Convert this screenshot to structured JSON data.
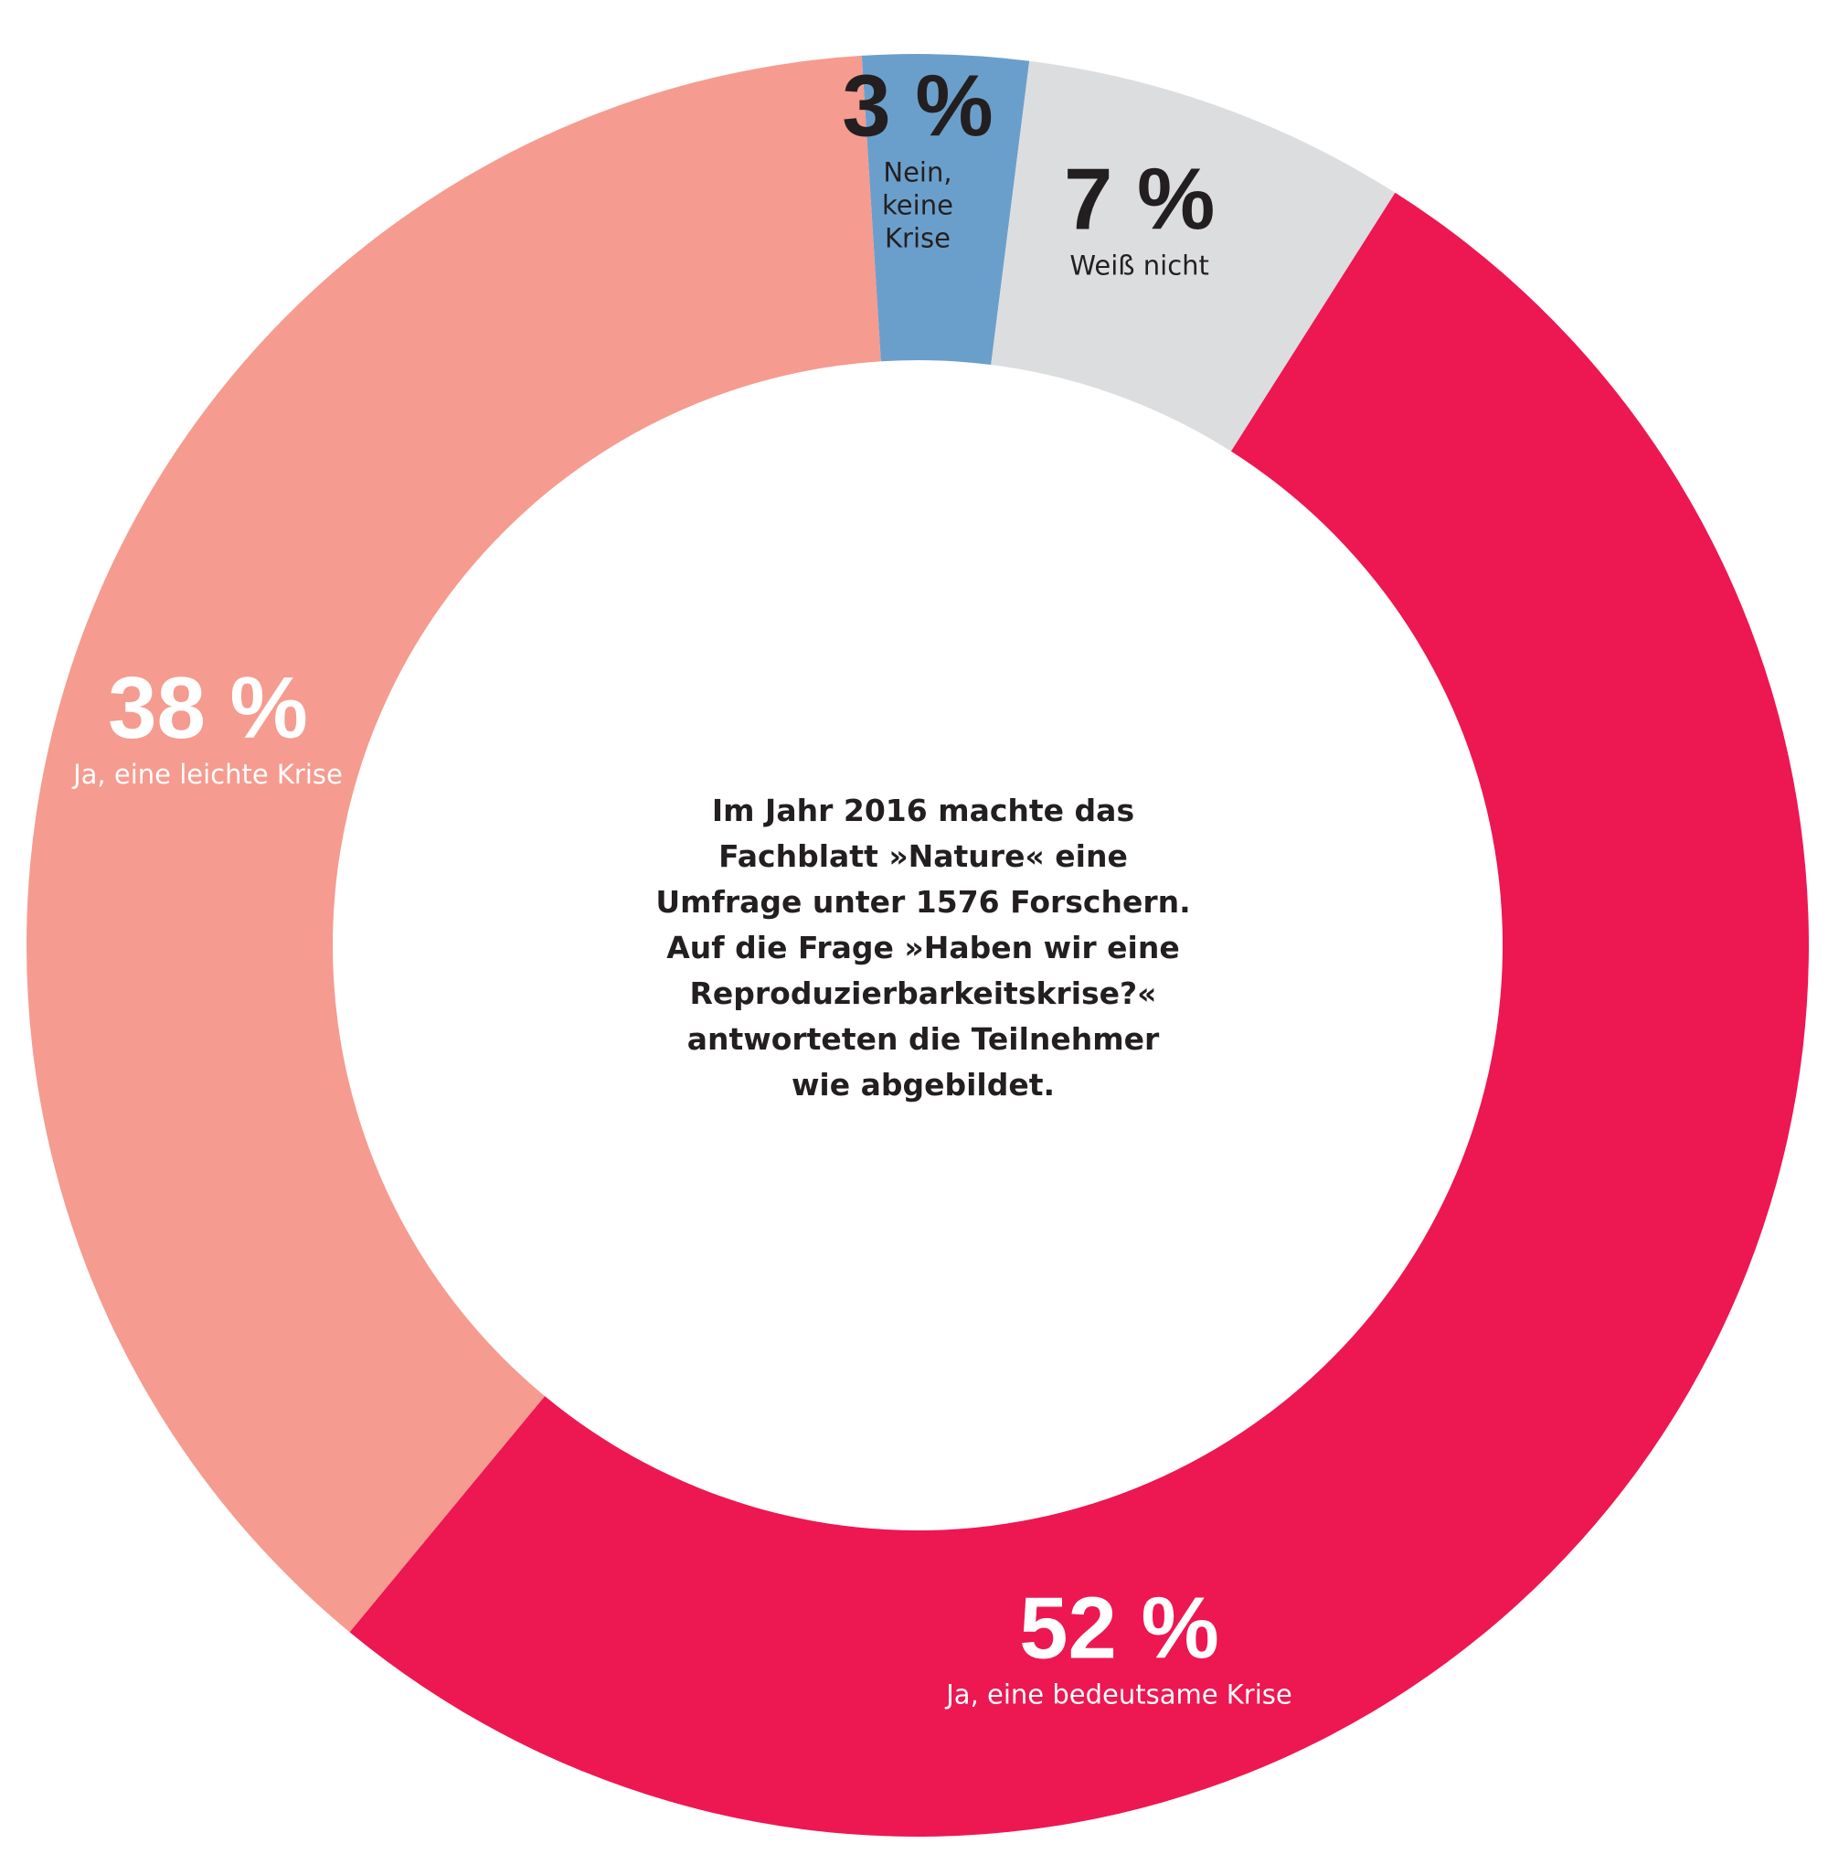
{
  "chart_data": {
    "type": "pie",
    "donut": true,
    "slices": [
      {
        "value": 3,
        "pct_label": "3 %",
        "label_lines": [
          "Nein,",
          "keine",
          "Krise"
        ],
        "color": "#6b9fcb",
        "pct_color": "#231f20",
        "label_color": "#231f20"
      },
      {
        "value": 7,
        "pct_label": "7 %",
        "label_lines": [
          "Weiß nicht"
        ],
        "color": "#dcdddf",
        "pct_color": "#231f20",
        "label_color": "#231f20"
      },
      {
        "value": 52,
        "pct_label": "52 %",
        "label_lines": [
          "Ja, eine bedeutsame Krise"
        ],
        "color": "#ed1751",
        "pct_color": "#ffffff",
        "label_color": "#ffffff"
      },
      {
        "value": 38,
        "pct_label": "38 %",
        "label_lines": [
          "Ja, eine leichte Krise"
        ],
        "color": "#f59b90",
        "pct_color": "#ffffff",
        "label_color": "#ffffff"
      }
    ],
    "center_text": [
      "Im Jahr 2016 machte das",
      "Fachblatt »Nature« eine",
      "Umfrage unter 1576 Forschern.",
      "Auf die Frage »Haben wir eine",
      "Reproduzierbarkeitskrise?«",
      "antworteten die Teilnehmer",
      "wie abgebildet."
    ]
  }
}
